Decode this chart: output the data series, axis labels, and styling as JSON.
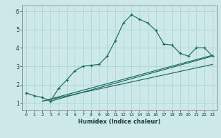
{
  "xlabel": "Humidex (Indice chaleur)",
  "ylabel": "",
  "bg_color": "#cce8e8",
  "grid_color": "#aad4d4",
  "line_color": "#1a6b5e",
  "xlim": [
    -0.5,
    23.5
  ],
  "ylim": [
    0.6,
    6.3
  ],
  "yticks": [
    1,
    2,
    3,
    4,
    5,
    6
  ],
  "xticks": [
    0,
    1,
    2,
    3,
    4,
    5,
    6,
    7,
    8,
    9,
    10,
    11,
    12,
    13,
    14,
    15,
    16,
    17,
    18,
    19,
    20,
    21,
    22,
    23
  ],
  "line1_x": [
    0,
    1,
    2,
    3,
    4,
    5,
    6,
    7,
    8,
    9,
    10,
    11,
    12,
    13,
    14,
    15,
    16,
    17,
    18,
    19,
    20,
    21,
    22,
    23
  ],
  "line1_y": [
    1.55,
    1.4,
    1.3,
    1.1,
    1.8,
    2.25,
    2.75,
    3.0,
    3.05,
    3.1,
    3.55,
    4.4,
    5.35,
    5.8,
    5.55,
    5.35,
    4.95,
    4.2,
    4.15,
    3.7,
    3.55,
    4.0,
    4.0,
    3.55
  ],
  "line2_x": [
    2,
    23
  ],
  "line2_y": [
    1.1,
    3.6
  ],
  "line3_x": [
    2,
    23
  ],
  "line3_y": [
    1.1,
    3.1
  ],
  "line4_x": [
    3,
    23
  ],
  "line4_y": [
    1.1,
    3.55
  ]
}
